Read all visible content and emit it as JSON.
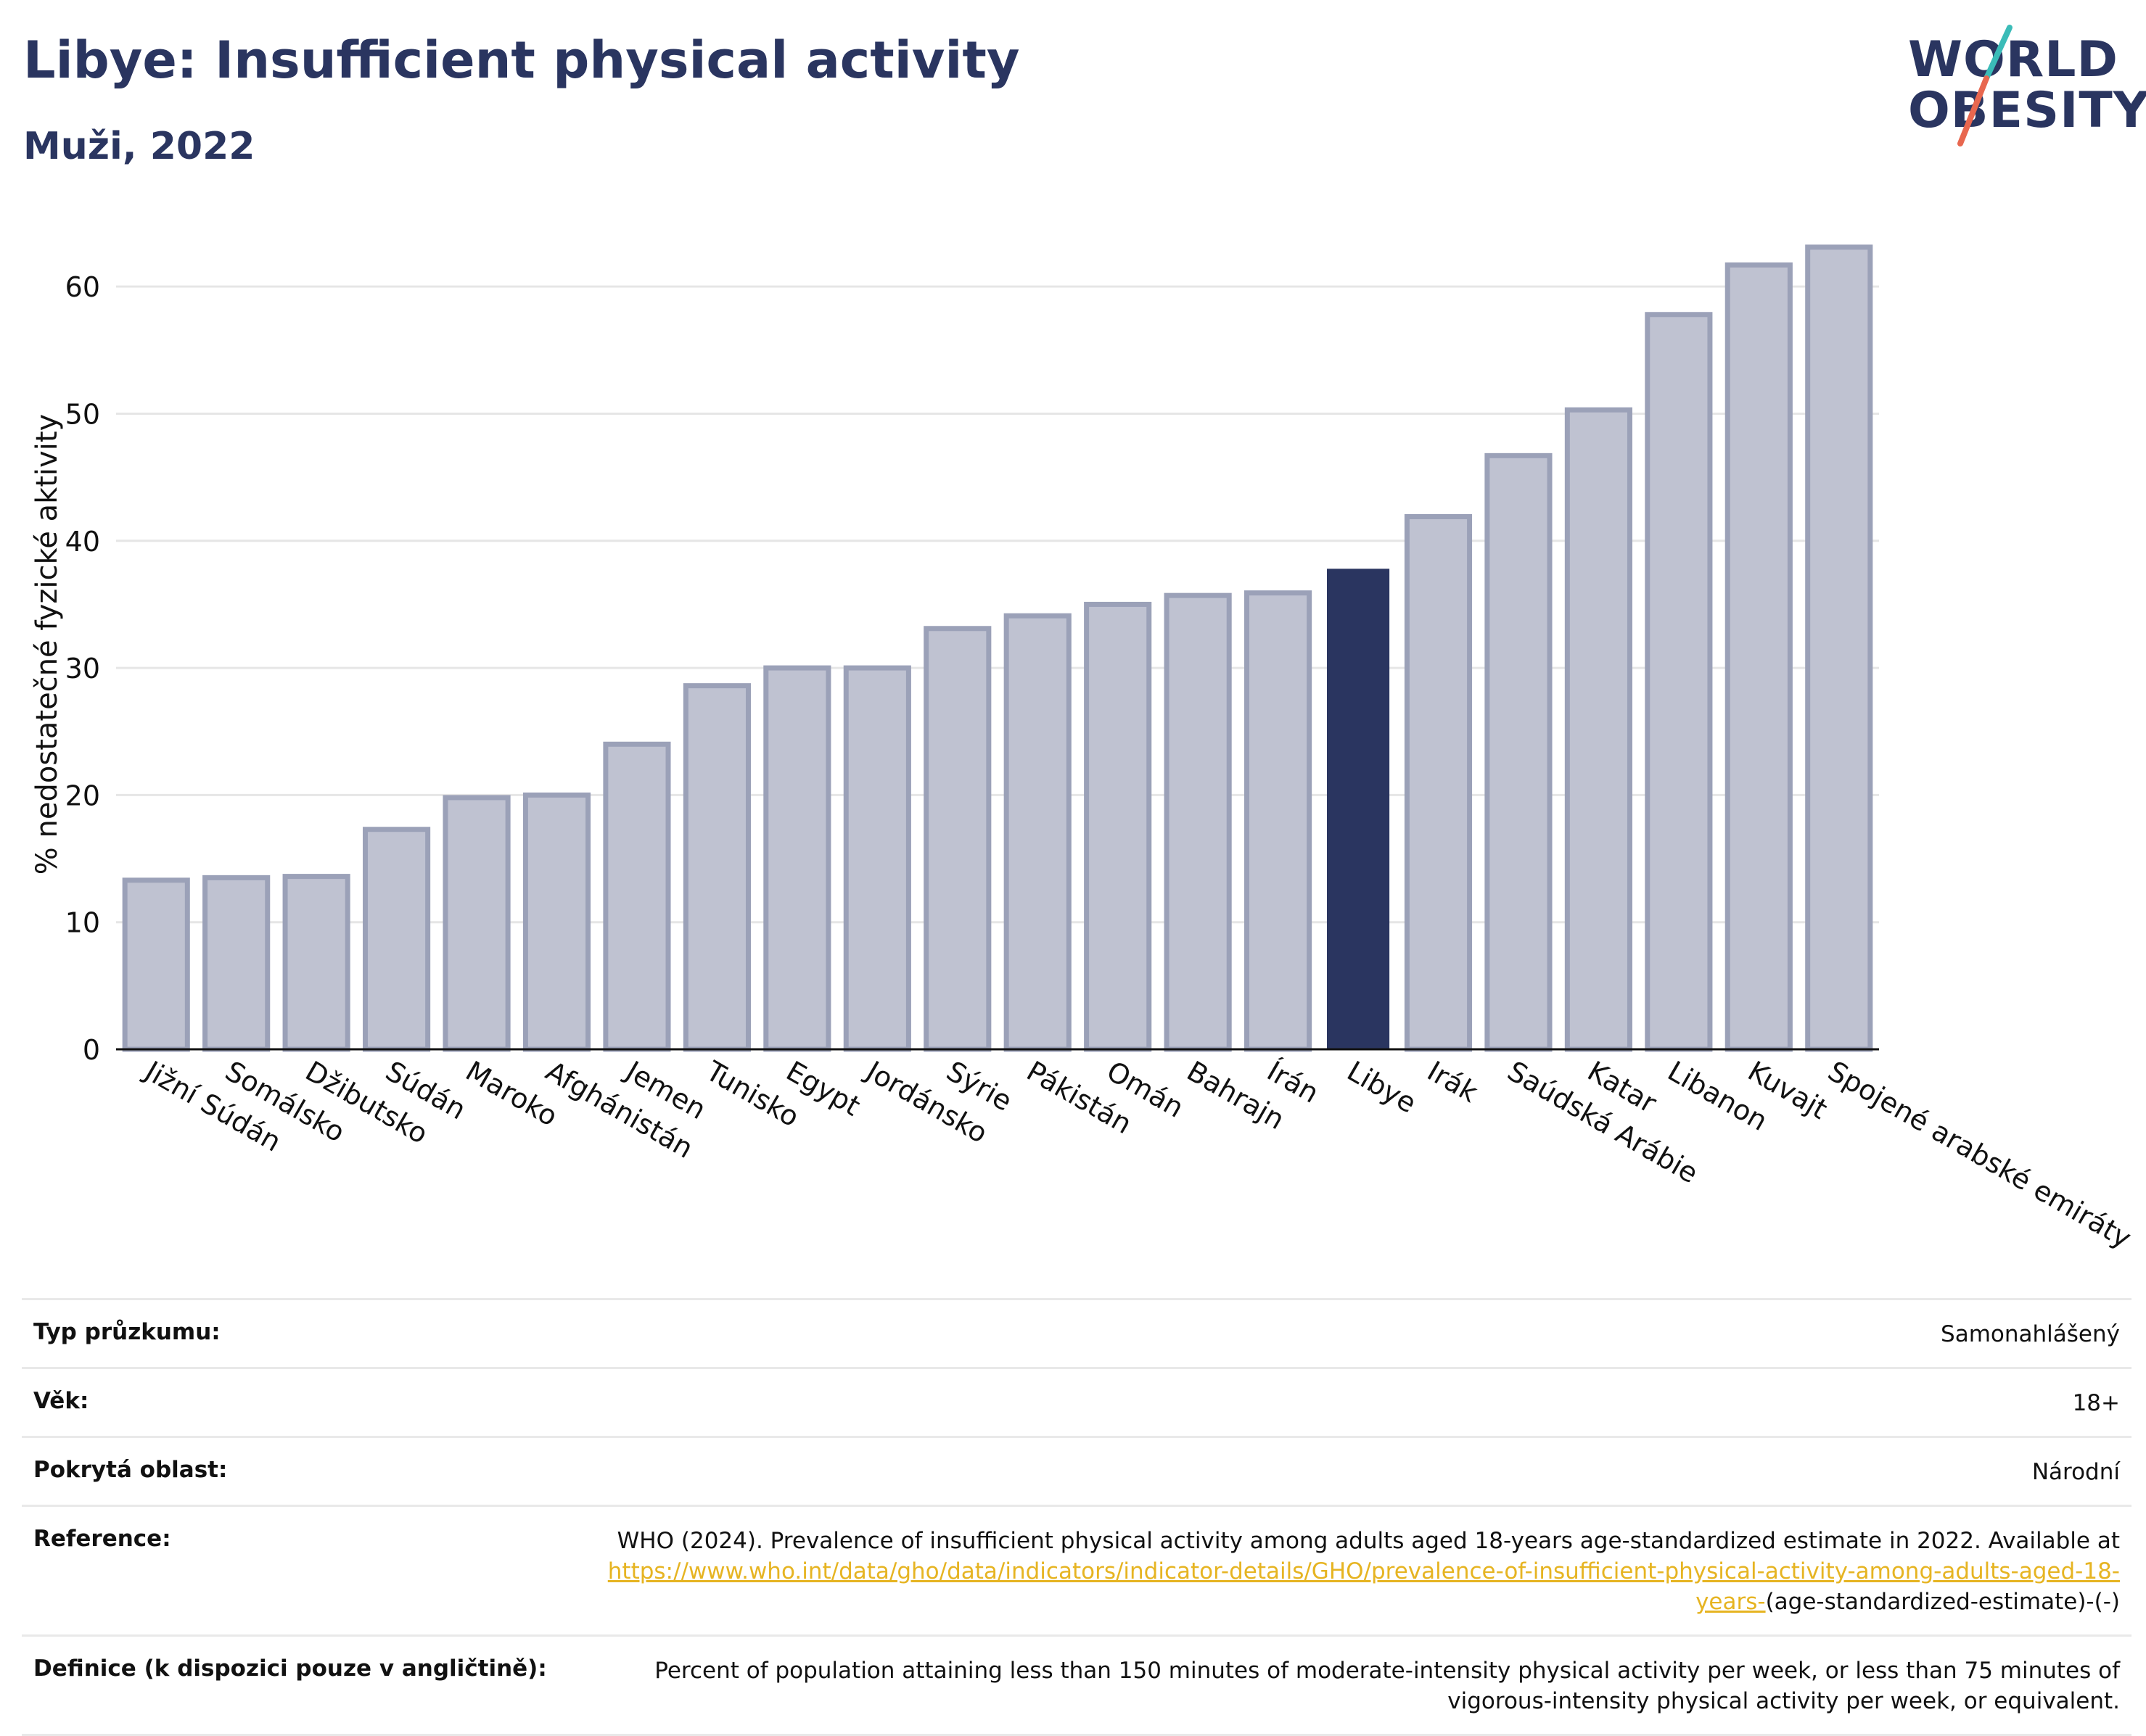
{
  "header": {
    "title": "Libye: Insufficient physical activity",
    "subtitle": "Muži, 2022"
  },
  "logo": {
    "line1": "WORLD",
    "line2": "OBESITY"
  },
  "chart_data": {
    "type": "bar",
    "title": "Libye: Insufficient physical activity",
    "subtitle": "Muži, 2022",
    "ylabel": "% nedostatečné fyzické aktivity",
    "xlabel": "",
    "ylim": [
      0,
      66
    ],
    "yticks": [
      0,
      10,
      20,
      30,
      40,
      50,
      60
    ],
    "grid": true,
    "categories": [
      "Jižní Súdán",
      "Somálsko",
      "Džibutsko",
      "Súdán",
      "Maroko",
      "Afghánistán",
      "Jemen",
      "Tunisko",
      "Egypt",
      "Jordánsko",
      "Sýrie",
      "Pákistán",
      "Omán",
      "Bahrajn",
      "Írán",
      "Libye",
      "Irák",
      "Saúdská Arábie",
      "Katar",
      "Libanon",
      "Kuvajt",
      "Spojené arabské emiráty"
    ],
    "values": [
      13.3,
      13.5,
      13.6,
      17.3,
      19.8,
      20.0,
      24.0,
      28.6,
      30.0,
      30.0,
      33.1,
      34.1,
      35.0,
      35.7,
      35.9,
      37.8,
      41.9,
      46.7,
      50.3,
      57.8,
      61.7,
      63.1
    ],
    "highlight": "Libye",
    "colors": {
      "bar": "#bfc2d1",
      "bar_border": "#9ba1b8",
      "highlight": "#2a3560",
      "grid": "#e6e6e6",
      "axis": "#111111"
    }
  },
  "meta": {
    "survey_type_label": "Typ průzkumu:",
    "survey_type_value": "Samonahlášený",
    "age_label": "Věk:",
    "age_value": "18+",
    "coverage_label": "Pokrytá oblast:",
    "coverage_value": "Národní",
    "reference_label": "Reference:",
    "reference_text": "WHO (2024). Prevalence of insufficient physical activity among adults aged 18-years age-standardized estimate in 2022. Available at",
    "reference_link": "https://www.who.int/data/gho/data/indicators/indicator-details/GHO/prevalence-of-insufficient-physical-activity-among-adults-aged-18-years-",
    "reference_suffix": "(age-standardized-estimate)-(-)",
    "definition_label": "Definice (k dispozici pouze v angličtině):",
    "definition_text": "Percent of population attaining less than 150 minutes of moderate-intensity physical activity per week, or less than 75 minutes of vigorous-intensity physical activity per week, or equivalent."
  }
}
